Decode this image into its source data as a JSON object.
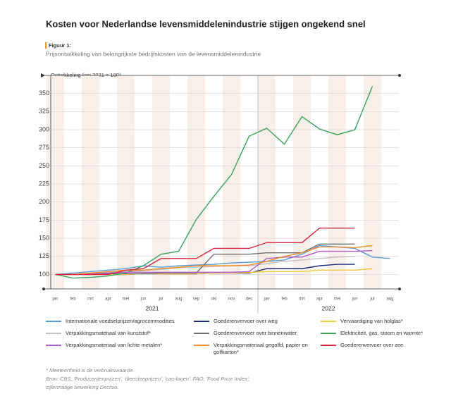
{
  "chart_data": {
    "type": "line",
    "title": "Kosten voor Nederlandse levensmiddelenindustrie stijgen ongekend snel",
    "figure_label": "Figuur 1:",
    "subtitle": "Prijsontwikkeling van belangrijkste bedrijfskosten van de levensmiddelenindustrie",
    "y_label": "Ontwikkeling (jan 2021 = 100)",
    "categories": [
      "jan",
      "feb",
      "mrt",
      "apr",
      "mei",
      "jun",
      "jul",
      "aug",
      "sep",
      "okt",
      "nov",
      "dec",
      "jan",
      "feb",
      "mrt",
      "apr",
      "mei",
      "jun",
      "jul",
      "aug"
    ],
    "years": [
      "2021",
      "2022"
    ],
    "ylim": [
      80,
      375
    ],
    "yticks": [
      100,
      125,
      150,
      175,
      200,
      225,
      250,
      275,
      300,
      325,
      350
    ],
    "grid": true,
    "series": [
      {
        "name": "Internationale voedselprijzen/agrocommodities",
        "color": "#5b9bd5",
        "values": [
          100,
          102,
          104,
          106,
          108,
          112,
          110,
          112,
          113,
          114,
          116,
          117,
          118,
          120,
          128,
          140,
          138,
          136,
          124,
          122
        ]
      },
      {
        "name": "Goederenvervoer over weg",
        "color": "#1f2a7a",
        "values": [
          100,
          100,
          100,
          100,
          100,
          101,
          101,
          101,
          101,
          102,
          102,
          102,
          108,
          108,
          108,
          112,
          114,
          114,
          null,
          null
        ]
      },
      {
        "name": "Vervaardiging van holglas*",
        "color": "#f5c842",
        "values": [
          100,
          100,
          100,
          100,
          100,
          101,
          101,
          101,
          101,
          102,
          102,
          103,
          104,
          104,
          104,
          106,
          106,
          106,
          108,
          null
        ]
      },
      {
        "name": "Verpakkingsmateriaal van kunststof*",
        "color": "#c8c0bc",
        "values": [
          100,
          100,
          101,
          103,
          104,
          105,
          107,
          109,
          110,
          111,
          112,
          112,
          115,
          118,
          120,
          122,
          124,
          125,
          null,
          null
        ]
      },
      {
        "name": "Goederenvervoer over binnenwater",
        "color": "#707070",
        "values": [
          100,
          100,
          100,
          101,
          101,
          101,
          102,
          102,
          102,
          128,
          128,
          128,
          130,
          130,
          130,
          142,
          142,
          142,
          null,
          null
        ]
      },
      {
        "name": "Elektriciteit, gas, stoom en warmte*",
        "color": "#3aa35b",
        "values": [
          100,
          95,
          96,
          98,
          102,
          112,
          128,
          132,
          176,
          208,
          238,
          291,
          302,
          280,
          318,
          301,
          293,
          300,
          360,
          null
        ]
      },
      {
        "name": "Verpakkingsmateriaal van lichte metalen*",
        "color": "#b05cc8",
        "values": [
          100,
          100,
          101,
          102,
          103,
          103,
          103,
          103,
          103,
          103,
          103,
          104,
          122,
          124,
          124,
          132,
          132,
          132,
          133,
          null
        ]
      },
      {
        "name": "Verpakkingsmateriaal gegolfd, papier en golfkarton*",
        "color": "#f0902a",
        "values": [
          100,
          100,
          102,
          104,
          106,
          106,
          108,
          110,
          112,
          112,
          112,
          113,
          118,
          125,
          130,
          138,
          138,
          137,
          140,
          null
        ]
      },
      {
        "name": "Goederenvervoer over zee",
        "color": "#d7263d",
        "values": [
          100,
          100,
          100,
          100,
          106,
          108,
          122,
          122,
          122,
          136,
          136,
          136,
          144,
          144,
          144,
          164,
          164,
          164,
          null,
          null
        ]
      }
    ],
    "footnotes": [
      "* Meeteenheid is de verbruikswaarde.",
      "Bron: CBS; 'Producentenprijzen', 'dienstenprijzen', 'cao-lonen'. FAO; 'Food Price Index';",
      "cijfermatige bewerking Decisio."
    ]
  }
}
